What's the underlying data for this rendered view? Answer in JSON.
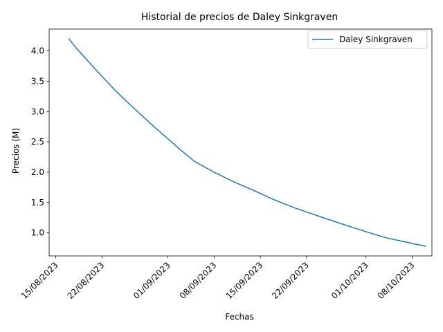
{
  "chart_data": {
    "type": "line",
    "title": "Historial de precios de Daley Sinkgraven",
    "xlabel": "Fechas",
    "ylabel": "Precios (M)",
    "x_ticks": [
      "15/08/2023",
      "22/08/2023",
      "01/09/2023",
      "08/09/2023",
      "15/09/2023",
      "22/09/2023",
      "01/10/2023",
      "08/10/2023"
    ],
    "y_ticks": [
      "1.0",
      "1.5",
      "2.0",
      "2.5",
      "3.0",
      "3.5",
      "4.0"
    ],
    "ylim": [
      0.62,
      4.36
    ],
    "xlim": [
      "2023-08-14",
      "2023-10-11"
    ],
    "legend_position": "top-right",
    "grid": false,
    "series": [
      {
        "name": "Daley Sinkgraven",
        "color": "#1f77b4",
        "points": [
          {
            "x": "2023-08-17",
            "y": 4.2
          },
          {
            "x": "2023-08-18",
            "y": 4.06
          },
          {
            "x": "2023-08-20",
            "y": 3.82
          },
          {
            "x": "2023-08-22",
            "y": 3.58
          },
          {
            "x": "2023-08-24",
            "y": 3.35
          },
          {
            "x": "2023-08-26",
            "y": 3.14
          },
          {
            "x": "2023-08-28",
            "y": 2.94
          },
          {
            "x": "2023-08-30",
            "y": 2.74
          },
          {
            "x": "2023-09-01",
            "y": 2.55
          },
          {
            "x": "2023-09-03",
            "y": 2.36
          },
          {
            "x": "2023-09-05",
            "y": 2.18
          },
          {
            "x": "2023-09-08",
            "y": 2.0
          },
          {
            "x": "2023-09-11",
            "y": 1.84
          },
          {
            "x": "2023-09-14",
            "y": 1.7
          },
          {
            "x": "2023-09-17",
            "y": 1.55
          },
          {
            "x": "2023-09-20",
            "y": 1.42
          },
          {
            "x": "2023-09-24",
            "y": 1.27
          },
          {
            "x": "2023-09-27",
            "y": 1.16
          },
          {
            "x": "2023-10-01",
            "y": 1.02
          },
          {
            "x": "2023-10-04",
            "y": 0.92
          },
          {
            "x": "2023-10-07",
            "y": 0.85
          },
          {
            "x": "2023-10-10",
            "y": 0.78
          }
        ]
      }
    ]
  }
}
